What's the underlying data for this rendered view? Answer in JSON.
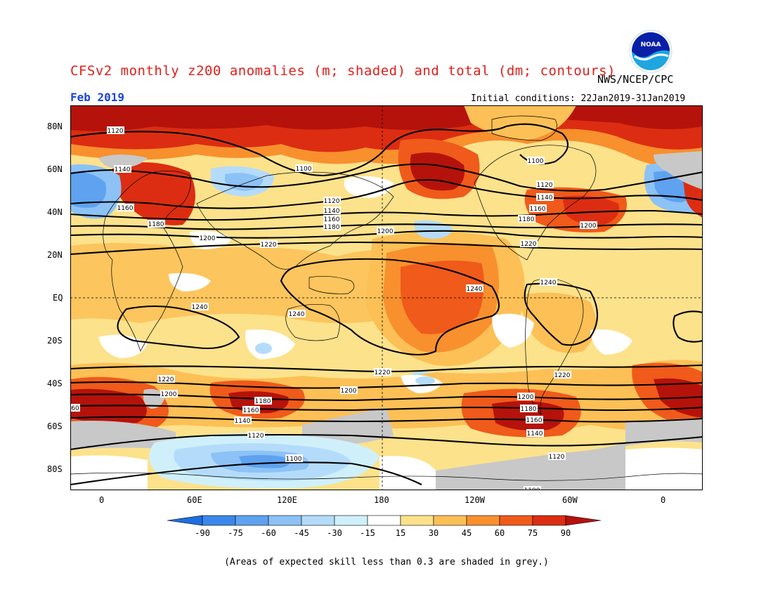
{
  "header": {
    "title": "CFSv2 monthly z200 anomalies (m; shaded) and total (dm; contours)",
    "agency": "NWS/NCEP/CPC",
    "logo_text": "NOAA",
    "month": "Feb 2019",
    "initial_conditions": "Initial conditions: 22Jan2019-31Jan2019"
  },
  "axes": {
    "lat_labels": [
      "80N",
      "60N",
      "40N",
      "20N",
      "EQ",
      "20S",
      "40S",
      "60S",
      "80S"
    ],
    "lon_labels": [
      "0",
      "60E",
      "120E",
      "180",
      "120W",
      "60W",
      "0"
    ]
  },
  "colorbar": {
    "ticks": [
      "-90",
      "-75",
      "-60",
      "-45",
      "-30",
      "-15",
      "15",
      "30",
      "45",
      "60",
      "75",
      "90"
    ],
    "colors": [
      "#1e6fe0",
      "#3a88ea",
      "#5ea2f0",
      "#8cc2f6",
      "#b4dcfa",
      "#cff0fa",
      "#ffffff",
      "#fde28c",
      "#fcc056",
      "#f8902e",
      "#f05a1a",
      "#dc2d12",
      "#b5120b"
    ]
  },
  "contour_labels": [
    "1100",
    "1120",
    "1140",
    "1160",
    "1180",
    "1200",
    "1220",
    "1240",
    "60"
  ],
  "footer": {
    "note": "(Areas of expected skill less than 0.3 are shaded in grey.)"
  }
}
